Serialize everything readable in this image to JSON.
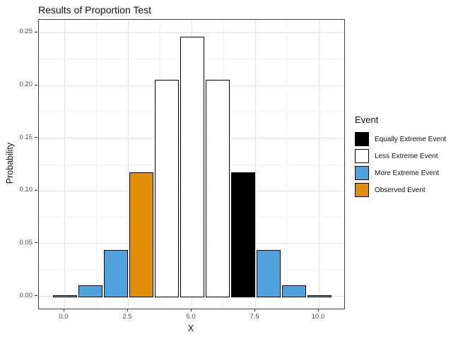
{
  "title": "Results of Proportion Test",
  "axes": {
    "x": {
      "label": "X",
      "tick_labels": [
        "0.0",
        "2.5",
        "5.0",
        "7.5",
        "10.0"
      ],
      "tick_values": [
        0,
        2.5,
        5,
        7.5,
        10
      ],
      "minor_values": [
        1.25,
        3.75,
        6.25,
        8.75
      ],
      "lim": [
        -1,
        11
      ]
    },
    "y": {
      "label": "Probability",
      "tick_labels": [
        "0.00",
        "0.05",
        "0.10",
        "0.15",
        "0.20",
        "0.25"
      ],
      "tick_values": [
        0,
        0.05,
        0.1,
        0.15,
        0.2,
        0.25
      ],
      "minor_values": [
        0.025,
        0.075,
        0.125,
        0.175,
        0.225
      ],
      "lim": [
        -0.012,
        0.262
      ]
    }
  },
  "legend": {
    "title": "Event",
    "position": "right",
    "items": [
      {
        "label": "Equally Extreme Event",
        "color": "#000000"
      },
      {
        "label": "Less Extreme Event",
        "color": "#FFFFFF"
      },
      {
        "label": "More Extreme Event",
        "color": "#4FA2DC"
      },
      {
        "label": "Observed Event",
        "color": "#E08E09"
      }
    ]
  },
  "chart_data": {
    "type": "bar",
    "title": "Results of Proportion Test",
    "xlabel": "X",
    "ylabel": "Probability",
    "x": [
      0,
      1,
      2,
      3,
      4,
      5,
      6,
      7,
      8,
      9,
      10
    ],
    "values": [
      0.001,
      0.0098,
      0.0439,
      0.1172,
      0.2051,
      0.2461,
      0.2051,
      0.1172,
      0.0439,
      0.0098,
      0.001
    ],
    "events": [
      "More Extreme Event",
      "More Extreme Event",
      "More Extreme Event",
      "Observed Event",
      "Less Extreme Event",
      "Less Extreme Event",
      "Less Extreme Event",
      "Equally Extreme Event",
      "More Extreme Event",
      "More Extreme Event",
      "More Extreme Event"
    ],
    "bar_width": 0.9,
    "bar_border_color": "#000000",
    "xlim": [
      -1,
      11
    ],
    "ylim": [
      -0.012,
      0.262
    ],
    "grid": true,
    "legend_position": "right",
    "legend_title": "Event"
  },
  "colors": {
    "grid_major": "#E3E3E3",
    "grid_minor": "#F2F2F2",
    "panel_border": "#3F3F3F",
    "tick": "#333333",
    "tick_label": "#4D4D4D",
    "background": "#FFFFFF"
  }
}
